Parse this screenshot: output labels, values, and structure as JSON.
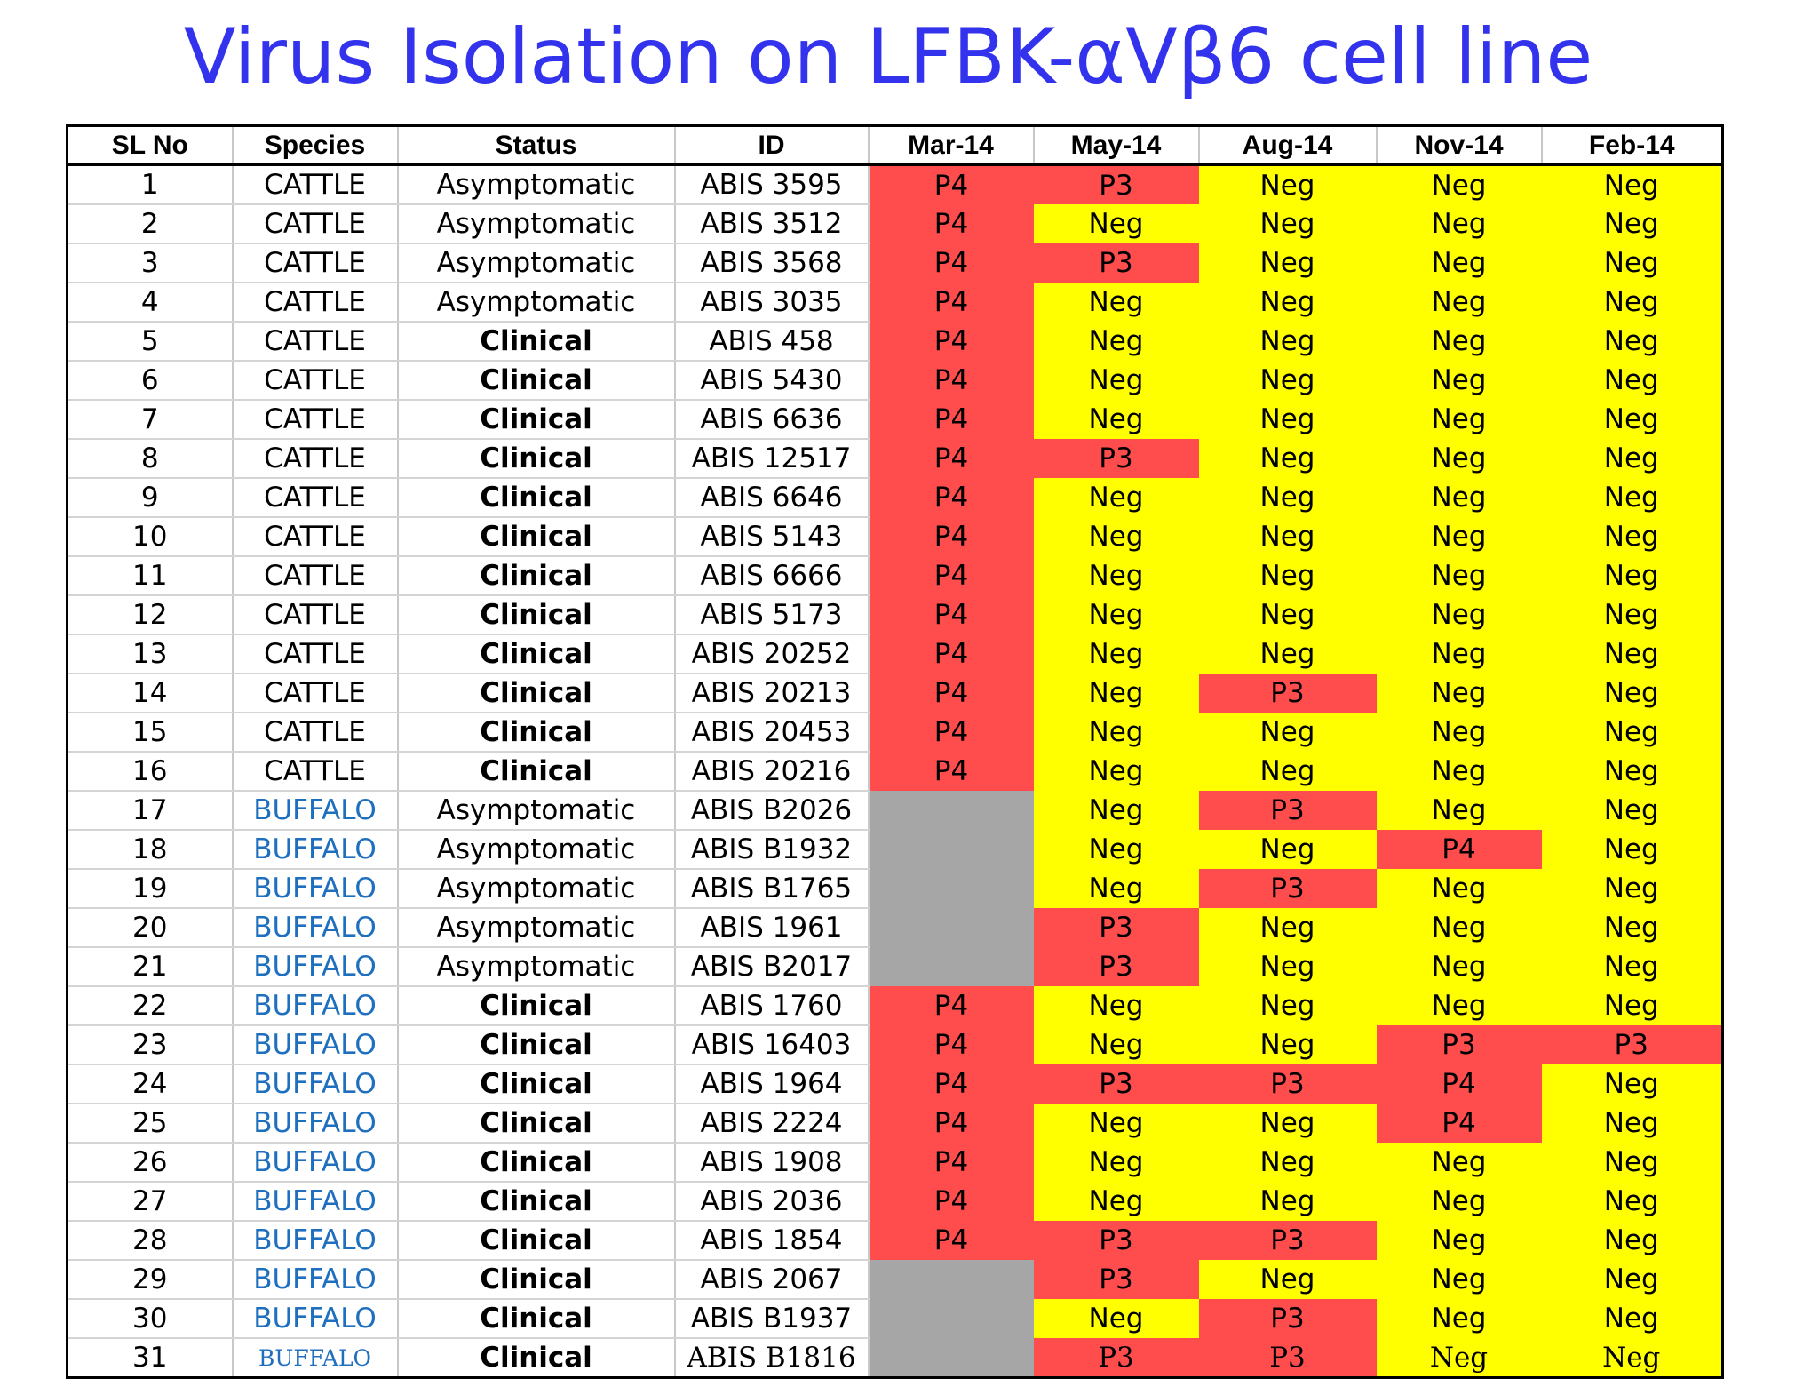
{
  "title": "Virus Isolation on LFBK-αVβ6 cell line",
  "colors": {
    "title": "#3333ee",
    "positive": "#ff4d4d",
    "negative": "#ffff00",
    "not_tested": "#a6a6a6",
    "buffalo_text": "#1f6fbf"
  },
  "headers": [
    "SL No",
    "Species",
    "Status",
    "ID",
    "Mar-14",
    "May-14",
    "Aug-14",
    "Nov-14",
    "Feb-14"
  ],
  "rows": [
    {
      "sl": "1",
      "species": "CATTLE",
      "status": "Asymptomatic",
      "id": "ABIS 3595",
      "results": [
        "P4",
        "P3",
        "Neg",
        "Neg",
        "Neg"
      ]
    },
    {
      "sl": "2",
      "species": "CATTLE",
      "status": "Asymptomatic",
      "id": "ABIS 3512",
      "results": [
        "P4",
        "Neg",
        "Neg",
        "Neg",
        "Neg"
      ]
    },
    {
      "sl": "3",
      "species": "CATTLE",
      "status": "Asymptomatic",
      "id": "ABIS 3568",
      "results": [
        "P4",
        "P3",
        "Neg",
        "Neg",
        "Neg"
      ]
    },
    {
      "sl": "4",
      "species": "CATTLE",
      "status": "Asymptomatic",
      "id": "ABIS 3035",
      "results": [
        "P4",
        "Neg",
        "Neg",
        "Neg",
        "Neg"
      ]
    },
    {
      "sl": "5",
      "species": "CATTLE",
      "status": "Clinical",
      "id": "ABIS 458",
      "results": [
        "P4",
        "Neg",
        "Neg",
        "Neg",
        "Neg"
      ]
    },
    {
      "sl": "6",
      "species": "CATTLE",
      "status": "Clinical",
      "id": "ABIS 5430",
      "results": [
        "P4",
        "Neg",
        "Neg",
        "Neg",
        "Neg"
      ]
    },
    {
      "sl": "7",
      "species": "CATTLE",
      "status": "Clinical",
      "id": "ABIS 6636",
      "results": [
        "P4",
        "Neg",
        "Neg",
        "Neg",
        "Neg"
      ]
    },
    {
      "sl": "8",
      "species": "CATTLE",
      "status": "Clinical",
      "id": "ABIS 12517",
      "results": [
        "P4",
        "P3",
        "Neg",
        "Neg",
        "Neg"
      ]
    },
    {
      "sl": "9",
      "species": "CATTLE",
      "status": "Clinical",
      "id": "ABIS 6646",
      "results": [
        "P4",
        "Neg",
        "Neg",
        "Neg",
        "Neg"
      ]
    },
    {
      "sl": "10",
      "species": "CATTLE",
      "status": "Clinical",
      "id": "ABIS 5143",
      "results": [
        "P4",
        "Neg",
        "Neg",
        "Neg",
        "Neg"
      ]
    },
    {
      "sl": "11",
      "species": "CATTLE",
      "status": "Clinical",
      "id": "ABIS 6666",
      "results": [
        "P4",
        "Neg",
        "Neg",
        "Neg",
        "Neg"
      ]
    },
    {
      "sl": "12",
      "species": "CATTLE",
      "status": "Clinical",
      "id": "ABIS 5173",
      "results": [
        "P4",
        "Neg",
        "Neg",
        "Neg",
        "Neg"
      ]
    },
    {
      "sl": "13",
      "species": "CATTLE",
      "status": "Clinical",
      "id": "ABIS 20252",
      "results": [
        "P4",
        "Neg",
        "Neg",
        "Neg",
        "Neg"
      ]
    },
    {
      "sl": "14",
      "species": "CATTLE",
      "status": "Clinical",
      "id": "ABIS 20213",
      "results": [
        "P4",
        "Neg",
        "P3",
        "Neg",
        "Neg"
      ]
    },
    {
      "sl": "15",
      "species": "CATTLE",
      "status": "Clinical",
      "id": "ABIS 20453",
      "results": [
        "P4",
        "Neg",
        "Neg",
        "Neg",
        "Neg"
      ]
    },
    {
      "sl": "16",
      "species": "CATTLE",
      "status": "Clinical",
      "id": "ABIS 20216",
      "results": [
        "P4",
        "Neg",
        "Neg",
        "Neg",
        "Neg"
      ]
    },
    {
      "sl": "17",
      "species": "BUFFALO",
      "status": "Asymptomatic",
      "id": "ABIS B2026",
      "results": [
        "",
        "Neg",
        "P3",
        "Neg",
        "Neg"
      ]
    },
    {
      "sl": "18",
      "species": "BUFFALO",
      "status": "Asymptomatic",
      "id": "ABIS B1932",
      "results": [
        "",
        "Neg",
        "Neg",
        "P4",
        "Neg"
      ]
    },
    {
      "sl": "19",
      "species": "BUFFALO",
      "status": "Asymptomatic",
      "id": "ABIS B1765",
      "results": [
        "",
        "Neg",
        "P3",
        "Neg",
        "Neg"
      ]
    },
    {
      "sl": "20",
      "species": "BUFFALO",
      "status": "Asymptomatic",
      "id": "ABIS 1961",
      "results": [
        "",
        "P3",
        "Neg",
        "Neg",
        "Neg"
      ]
    },
    {
      "sl": "21",
      "species": "BUFFALO",
      "status": "Asymptomatic",
      "id": "ABIS B2017",
      "results": [
        "",
        "P3",
        "Neg",
        "Neg",
        "Neg"
      ]
    },
    {
      "sl": "22",
      "species": "BUFFALO",
      "status": "Clinical",
      "id": "ABIS 1760",
      "results": [
        "P4",
        "Neg",
        "Neg",
        "Neg",
        "Neg"
      ]
    },
    {
      "sl": "23",
      "species": "BUFFALO",
      "status": "Clinical",
      "id": "ABIS 16403",
      "results": [
        "P4",
        "Neg",
        "Neg",
        "P3",
        "P3"
      ]
    },
    {
      "sl": "24",
      "species": "BUFFALO",
      "status": "Clinical",
      "id": "ABIS 1964",
      "results": [
        "P4",
        "P3",
        "P3",
        "P4",
        "Neg"
      ]
    },
    {
      "sl": "25",
      "species": "BUFFALO",
      "status": "Clinical",
      "id": "ABIS 2224",
      "results": [
        "P4",
        "Neg",
        "Neg",
        "P4",
        "Neg"
      ]
    },
    {
      "sl": "26",
      "species": "BUFFALO",
      "status": "Clinical",
      "id": "ABIS 1908",
      "results": [
        "P4",
        "Neg",
        "Neg",
        "Neg",
        "Neg"
      ]
    },
    {
      "sl": "27",
      "species": "BUFFALO",
      "status": "Clinical",
      "id": "ABIS 2036",
      "results": [
        "P4",
        "Neg",
        "Neg",
        "Neg",
        "Neg"
      ]
    },
    {
      "sl": "28",
      "species": "BUFFALO",
      "status": "Clinical",
      "id": "ABIS 1854",
      "results": [
        "P4",
        "P3",
        "P3",
        "Neg",
        "Neg"
      ]
    },
    {
      "sl": "29",
      "species": "BUFFALO",
      "status": "Clinical",
      "id": "ABIS 2067",
      "results": [
        "",
        "P3",
        "Neg",
        "Neg",
        "Neg"
      ]
    },
    {
      "sl": "30",
      "species": "BUFFALO",
      "status": "Clinical",
      "id": "ABIS B1937",
      "results": [
        "",
        "Neg",
        "P3",
        "Neg",
        "Neg"
      ]
    },
    {
      "sl": "31",
      "species": "BUFFALO",
      "status": "Clinical",
      "id": "ABIS B1816",
      "results": [
        "",
        "P3",
        "P3",
        "Neg",
        "Neg"
      ]
    }
  ]
}
